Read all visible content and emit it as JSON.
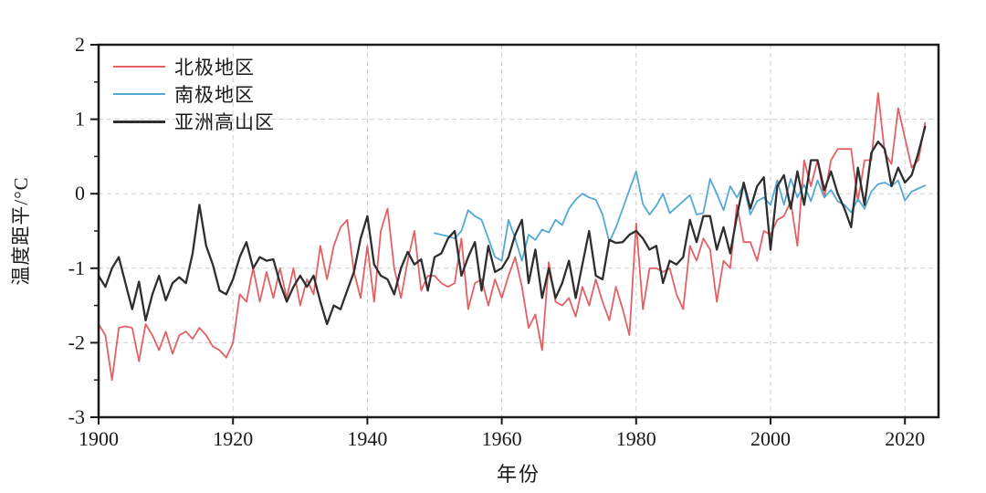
{
  "chart_data": {
    "type": "line",
    "title": "",
    "xlabel": "年份",
    "ylabel": "温度距平/°C",
    "xlim": [
      1900,
      2025
    ],
    "ylim": [
      -3,
      2
    ],
    "x_ticks": [
      1900,
      1920,
      1940,
      1960,
      1980,
      2000,
      2020
    ],
    "y_ticks": [
      2,
      1,
      0,
      -1,
      -2,
      -3
    ],
    "y_minor_ticks": [
      1.5,
      0.5,
      -0.5,
      -1.5,
      -2.5
    ],
    "x_gridlines": [
      1920,
      1940,
      1960,
      1980,
      2000,
      2020
    ],
    "y_gridlines": [
      1,
      0,
      -1,
      -2
    ],
    "grid_style": "dashed-light-gray",
    "legend_position": "top-left-inside",
    "series": [
      {
        "key": "arctic",
        "name": "北极地区",
        "color": "#e26066",
        "line_width": 1.8,
        "start_year": 1900,
        "values": [
          -1.75,
          -1.9,
          -2.5,
          -1.8,
          -1.78,
          -1.8,
          -2.25,
          -1.75,
          -1.9,
          -2.1,
          -1.85,
          -2.15,
          -1.9,
          -1.85,
          -1.95,
          -1.8,
          -1.9,
          -2.05,
          -2.1,
          -2.2,
          -2.0,
          -1.35,
          -1.45,
          -1.0,
          -1.45,
          -1.05,
          -1.4,
          -1.0,
          -1.4,
          -1.0,
          -1.5,
          -1.15,
          -1.35,
          -0.7,
          -1.15,
          -0.7,
          -0.45,
          -0.35,
          -1.05,
          -1.4,
          -0.7,
          -1.45,
          -0.5,
          -0.2,
          -1.0,
          -1.4,
          -0.9,
          -0.5,
          -1.3,
          -1.1,
          -1.1,
          -1.2,
          -1.25,
          -1.2,
          -0.6,
          -1.55,
          -1.2,
          -1.15,
          -1.5,
          -1.15,
          -1.4,
          -1.1,
          -0.85,
          -1.25,
          -1.8,
          -1.62,
          -2.1,
          -0.92,
          -1.45,
          -1.5,
          -1.4,
          -1.65,
          -1.25,
          -1.5,
          -1.15,
          -1.45,
          -1.7,
          -1.25,
          -1.55,
          -1.9,
          -0.4,
          -1.55,
          -1.0,
          -1.0,
          -1.05,
          -1.0,
          -1.35,
          -1.55,
          -0.7,
          -0.9,
          -0.6,
          -0.75,
          -1.45,
          -0.9,
          -1.0,
          -0.15,
          -0.65,
          -0.65,
          -0.9,
          -0.5,
          -0.55,
          -0.35,
          -0.3,
          -0.1,
          -0.7,
          0.45,
          0.1,
          0.45,
          -0.05,
          0.45,
          0.6,
          0.6,
          0.6,
          -0.1,
          0.45,
          0.45,
          1.35,
          0.55,
          0.4,
          1.15,
          0.75,
          0.35,
          0.45,
          0.95
        ]
      },
      {
        "key": "antarctic",
        "name": "南极地区",
        "color": "#54a8d4",
        "line_width": 1.8,
        "start_year": 1950,
        "values": [
          -0.53,
          -0.55,
          -0.57,
          -0.6,
          -0.5,
          -0.22,
          -0.3,
          -0.35,
          -0.6,
          -0.85,
          -0.9,
          -0.35,
          -0.6,
          -0.9,
          -0.55,
          -0.62,
          -0.48,
          -0.52,
          -0.35,
          -0.42,
          -0.2,
          -0.08,
          0.0,
          -0.05,
          -0.08,
          -0.28,
          -0.65,
          -0.45,
          -0.2,
          0.05,
          0.3,
          -0.14,
          -0.28,
          -0.16,
          0.0,
          -0.26,
          -0.18,
          -0.1,
          -0.02,
          -0.28,
          -0.26,
          0.2,
          0.0,
          -0.22,
          0.1,
          -0.05,
          0.12,
          -0.28,
          -0.1,
          -0.05,
          -0.15,
          0.18,
          -0.15,
          0.2,
          -0.05,
          0.12,
          -0.1,
          0.18,
          -0.05,
          0.05,
          -0.1,
          -0.15,
          -0.25,
          -0.07,
          -0.2,
          0.03,
          0.13,
          0.15,
          0.1,
          0.18,
          -0.09,
          0.03,
          0.07,
          0.11
        ]
      },
      {
        "key": "asian-high-mountain",
        "name": "亚洲高山区",
        "color": "#2e2e2e",
        "line_width": 2.3,
        "start_year": 1900,
        "values": [
          -1.1,
          -1.25,
          -1.0,
          -0.85,
          -1.2,
          -1.55,
          -1.18,
          -1.7,
          -1.35,
          -1.1,
          -1.43,
          -1.2,
          -1.12,
          -1.2,
          -0.8,
          -0.15,
          -0.7,
          -0.95,
          -1.3,
          -1.35,
          -1.15,
          -0.85,
          -0.65,
          -1.0,
          -0.85,
          -0.9,
          -0.88,
          -1.2,
          -1.45,
          -1.25,
          -1.1,
          -1.25,
          -1.1,
          -1.45,
          -1.75,
          -1.5,
          -1.55,
          -1.3,
          -1.05,
          -0.6,
          -0.3,
          -0.95,
          -1.1,
          -1.15,
          -1.35,
          -1.0,
          -0.78,
          -0.95,
          -0.88,
          -1.3,
          -0.85,
          -0.8,
          -0.6,
          -0.5,
          -1.1,
          -0.85,
          -0.65,
          -1.3,
          -0.7,
          -1.05,
          -1.0,
          -0.85,
          -0.55,
          -0.35,
          -1.2,
          -0.75,
          -1.4,
          -1.0,
          -1.4,
          -1.2,
          -0.9,
          -1.4,
          -0.95,
          -0.5,
          -1.1,
          -1.15,
          -0.62,
          -0.66,
          -0.65,
          -0.55,
          -0.5,
          -0.6,
          -0.75,
          -0.7,
          -1.2,
          -0.9,
          -0.95,
          -0.85,
          -0.35,
          -0.65,
          -0.3,
          -0.3,
          -0.75,
          -0.45,
          -0.8,
          -0.3,
          0.15,
          -0.2,
          0.1,
          0.22,
          -0.75,
          0.1,
          0.25,
          -0.2,
          0.3,
          -0.15,
          0.45,
          0.45,
          0.05,
          0.3,
          0.0,
          -0.2,
          -0.45,
          0.35,
          -0.15,
          0.55,
          0.7,
          0.6,
          0.1,
          0.35,
          0.15,
          0.25,
          0.55,
          0.9
        ]
      }
    ],
    "frame_color": "#1a1a1a",
    "gridline_color": "#cdcdcd",
    "tick_label_color": "#1a1a1a"
  }
}
